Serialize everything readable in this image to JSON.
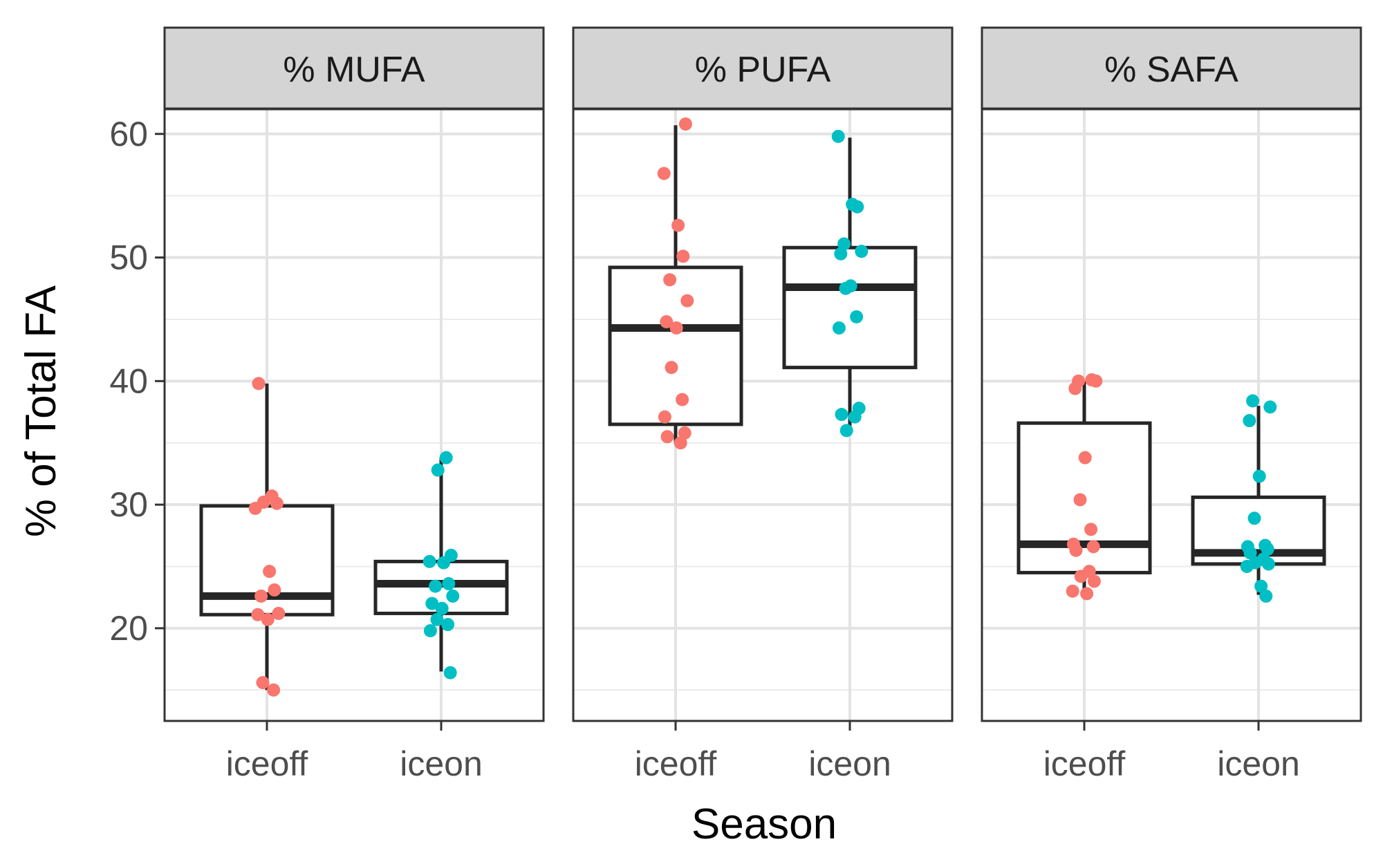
{
  "chart_data": {
    "type": "boxplot",
    "xlabel": "Season",
    "ylabel": "% of Total FA",
    "ylim": [
      12.5,
      62
    ],
    "yticks": [
      20,
      30,
      40,
      50,
      60
    ],
    "grid": true,
    "categories": [
      "iceoff",
      "iceon"
    ],
    "colors": {
      "iceoff": "#F8766D",
      "iceon": "#00BFC4"
    },
    "panels": [
      {
        "strip": "% MUFA",
        "boxes": [
          {
            "category": "iceoff",
            "whisker_low": 15,
            "q1": 21.1,
            "median": 22.6,
            "q3": 29.9,
            "whisker_high": 39.8,
            "points": [
              39.8,
              30.7,
              30.2,
              30.1,
              29.7,
              24.6,
              23.1,
              22.6,
              21.2,
              21.1,
              20.7,
              15.6,
              15
            ]
          },
          {
            "category": "iceon",
            "whisker_low": 16.5,
            "q1": 21.2,
            "median": 23.6,
            "q3": 25.4,
            "whisker_high": 33.8,
            "points": [
              33.8,
              32.8,
              25.9,
              25.4,
              25.3,
              23.6,
              23.4,
              22.6,
              22,
              21.6,
              20.7,
              20.3,
              19.8,
              16.4
            ]
          }
        ]
      },
      {
        "strip": "% PUFA",
        "boxes": [
          {
            "category": "iceoff",
            "whisker_low": 35,
            "q1": 36.5,
            "median": 44.3,
            "q3": 49.2,
            "whisker_high": 60.7,
            "points": [
              60.8,
              56.8,
              52.6,
              50.1,
              48.2,
              46.5,
              44.8,
              44.3,
              41.1,
              38.5,
              37.1,
              35.8,
              35.5,
              35
            ]
          },
          {
            "category": "iceon",
            "whisker_low": 36,
            "q1": 41.1,
            "median": 47.6,
            "q3": 50.8,
            "whisker_high": 59.7,
            "points": [
              59.8,
              54.3,
              54.1,
              51.1,
              50.5,
              50.3,
              47.7,
              47.5,
              45.2,
              44.3,
              37.8,
              37.3,
              37.1,
              36
            ]
          }
        ]
      },
      {
        "strip": "% SAFA",
        "boxes": [
          {
            "category": "iceoff",
            "whisker_low": 23,
            "q1": 24.5,
            "median": 26.8,
            "q3": 36.6,
            "whisker_high": 40,
            "points": [
              40.1,
              40,
              40,
              39.4,
              33.8,
              30.4,
              28,
              26.8,
              26.6,
              26.3,
              24.6,
              24.2,
              23.8,
              23,
              22.8
            ]
          },
          {
            "category": "iceon",
            "whisker_low": 22.7,
            "q1": 25.2,
            "median": 26.1,
            "q3": 30.6,
            "whisker_high": 38,
            "points": [
              38.4,
              37.9,
              36.8,
              32.3,
              28.9,
              26.7,
              26.6,
              26.4,
              26.1,
              25.6,
              25.3,
              25.2,
              25,
              23.4,
              22.6
            ]
          }
        ]
      }
    ]
  }
}
